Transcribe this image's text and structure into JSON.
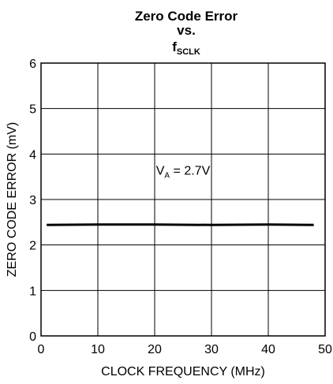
{
  "chart_data": {
    "type": "line",
    "title_line1": "Zero Code Error",
    "title_line2": "vs.",
    "title_line3_main": "f",
    "title_line3_sub": "SCLK",
    "xlabel": "CLOCK FREQUENCY (MHz)",
    "ylabel": "ZERO CODE ERROR (mV)",
    "xlim": [
      0,
      50
    ],
    "ylim": [
      0,
      6
    ],
    "xticks": [
      0,
      10,
      20,
      30,
      40,
      50
    ],
    "yticks": [
      0,
      1,
      2,
      3,
      4,
      5,
      6
    ],
    "grid": true,
    "series": [
      {
        "x": [
          1,
          10,
          20,
          30,
          40,
          48
        ],
        "y": [
          2.44,
          2.45,
          2.45,
          2.44,
          2.45,
          2.44
        ],
        "color": "#000000"
      }
    ],
    "annotation": {
      "main": "V",
      "sub": "A",
      "rest": " = 2.7V",
      "x": 25,
      "y": 3.55
    }
  }
}
